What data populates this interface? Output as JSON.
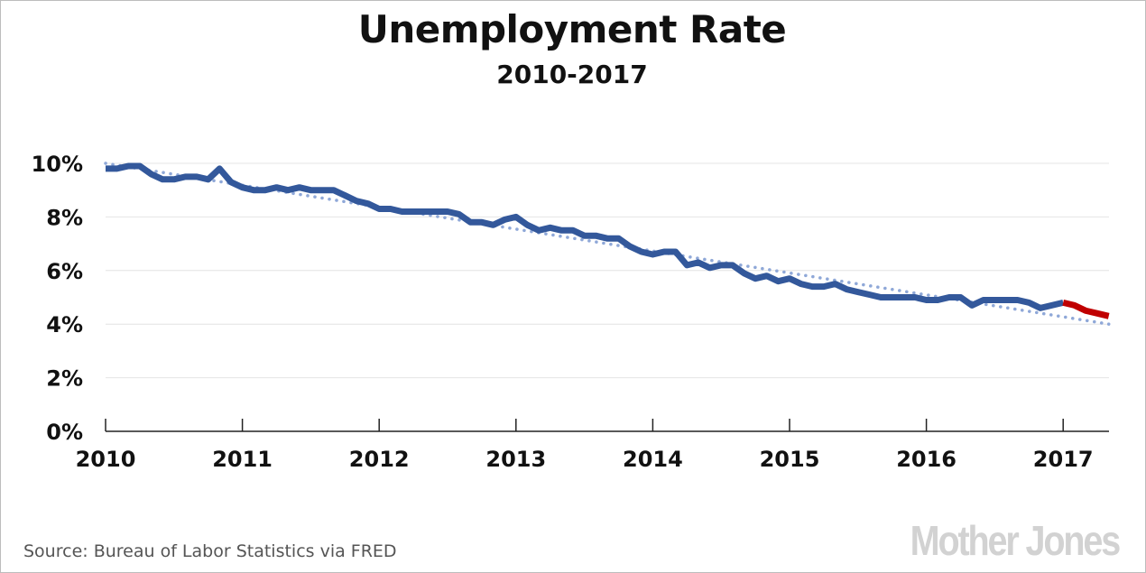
{
  "chart_data": {
    "type": "line",
    "title": "Unemployment Rate",
    "subtitle": "2010-2017",
    "xlabel": "",
    "ylabel": "",
    "x_start": "2010-01",
    "frequency": "monthly",
    "x_ticks": [
      "2010",
      "2011",
      "2012",
      "2013",
      "2014",
      "2015",
      "2016",
      "2017"
    ],
    "y_ticks": [
      "0%",
      "2%",
      "4%",
      "6%",
      "8%",
      "10%"
    ],
    "ylim": [
      0,
      10
    ],
    "xlim": [
      "2010-01",
      "2017-05"
    ],
    "grid": true,
    "legend": "none",
    "colors": {
      "main": "#33589b",
      "highlight": "#c00000",
      "trend": "#8fa8d8"
    },
    "series": [
      {
        "x_start": "2010-01",
        "x_end": "2017-01",
        "values": [
          9.8,
          9.8,
          9.9,
          9.9,
          9.6,
          9.4,
          9.4,
          9.5,
          9.5,
          9.4,
          9.8,
          9.3,
          9.1,
          9.0,
          9.0,
          9.1,
          9.0,
          9.1,
          9.0,
          9.0,
          9.0,
          8.8,
          8.6,
          8.5,
          8.3,
          8.3,
          8.2,
          8.2,
          8.2,
          8.2,
          8.2,
          8.1,
          7.8,
          7.8,
          7.7,
          7.9,
          8.0,
          7.7,
          7.5,
          7.6,
          7.5,
          7.5,
          7.3,
          7.3,
          7.2,
          7.2,
          6.9,
          6.7,
          6.6,
          6.7,
          6.7,
          6.2,
          6.3,
          6.1,
          6.2,
          6.2,
          5.9,
          5.7,
          5.8,
          5.6,
          5.7,
          5.5,
          5.4,
          5.4,
          5.5,
          5.3,
          5.2,
          5.1,
          5.0,
          5.0,
          5.0,
          5.0,
          4.9,
          4.9,
          5.0,
          5.0,
          4.7,
          4.9,
          4.9,
          4.9,
          4.9,
          4.8,
          4.6,
          4.7,
          4.8
        ]
      },
      {
        "x_start": "2017-01",
        "x_end": "2017-05",
        "values": [
          4.8,
          4.7,
          4.5,
          4.4,
          4.3
        ]
      },
      {
        "style": "dotted",
        "x": [
          "2010-01",
          "2017-05"
        ],
        "values": [
          10.0,
          4.0
        ]
      }
    ]
  },
  "source": "Source: Bureau of Labor Statistics via FRED",
  "logo": "Mother Jones"
}
